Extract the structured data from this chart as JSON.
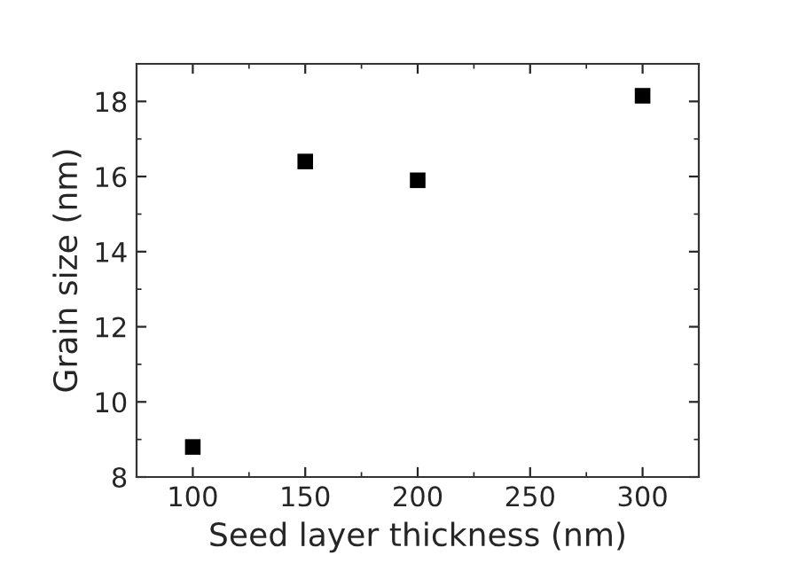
{
  "chart_data": {
    "type": "scatter",
    "xlabel": "Seed layer thickness (nm)",
    "ylabel": "Grain size (nm)",
    "x": [
      100,
      150,
      200,
      300
    ],
    "series": [
      {
        "color": "#000000",
        "values": [
          8.8,
          16.4,
          15.9,
          18.15
        ]
      }
    ],
    "xlim": [
      75,
      325
    ],
    "xticks": [
      100,
      150,
      200,
      250,
      300
    ],
    "ylim": [
      8,
      19
    ],
    "yticks": [
      8,
      10,
      12,
      14,
      16,
      18
    ],
    "marker": "square",
    "grid": false,
    "legend": false
  }
}
